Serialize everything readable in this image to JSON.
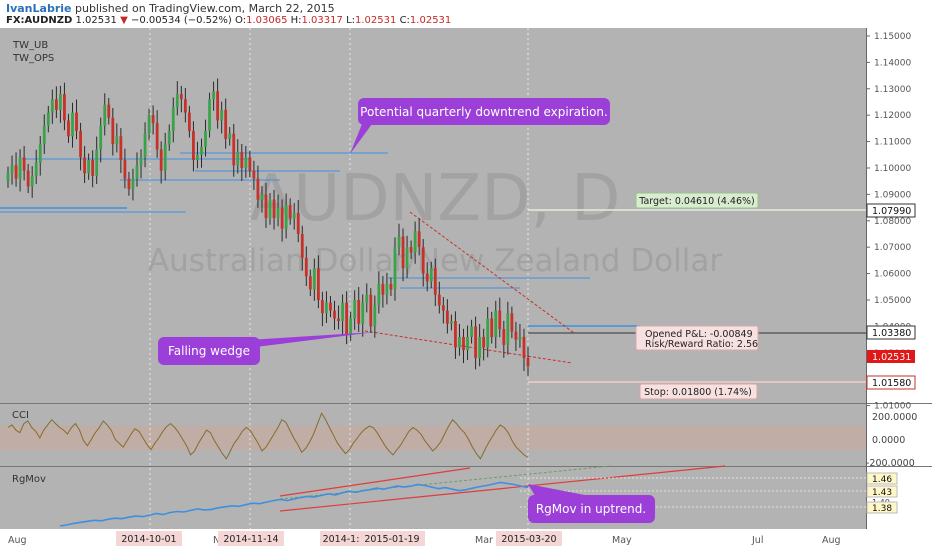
{
  "header": {
    "author": "IvanLabrie",
    "published": "published on TradingView.com, March 22, 2015",
    "symbol": "FX:AUDNZD",
    "last": "1.02531",
    "arrow": "▼",
    "change": "−0.00534 (−0.52%)",
    "o_label": "O:",
    "open": "1.03065",
    "h_label": "H:",
    "high": "1.03317",
    "l_label": "L:",
    "low": "1.02531",
    "c_label": "C:",
    "close": "1.02531"
  },
  "watermark": {
    "title": "AUDNZD, D",
    "subtitle": "Australian Dollar/New Zealand Dollar"
  },
  "studies": {
    "main_1": "TW_UB",
    "main_2": "TW_OPS",
    "cci": "CCI",
    "rgmov": "RgMov"
  },
  "annotations": {
    "callout_quarterly": "Potential quarterly downtrend expiration.",
    "callout_wedge": "Falling wedge",
    "callout_rgmov": "RgMov in uptrend.",
    "target": "Target: 0.04610 (4.46%)",
    "pnl_line1": "Opened P&L: -0.00849",
    "pnl_line2": "Risk/Reward Ratio: 2.56",
    "stop": "Stop: 0.01800 (1.74%)"
  },
  "price_badges": {
    "target": "1.07990",
    "entry": "1.03380",
    "last": "1.02531",
    "stop": "1.01580"
  },
  "date_badges": [
    "2014-10-01",
    "2014-11-14",
    "2014-1:",
    "2015-01-19",
    "2015-03-20"
  ],
  "month_labels": [
    "Aug",
    "No",
    "Mar",
    "May",
    "Jul",
    "Aug"
  ],
  "price_axis_ticks": [
    "1.15000",
    "1.14000",
    "1.13000",
    "1.12000",
    "1.11000",
    "1.10000",
    "1.09000",
    "1.08000",
    "1.07000",
    "1.06000",
    "1.05000",
    "1.04000",
    "1.03000",
    "1.02000",
    "1.01000"
  ],
  "cci_axis_ticks": [
    "200.0000",
    "0.0000",
    "-200.0000"
  ],
  "rgmov_axis_ticks": [
    "1.46",
    "1.43",
    "1.40",
    "1.38"
  ],
  "colors": {
    "background": "#b3b3b3",
    "up": "#3aa34a",
    "down": "#c8302a",
    "blue_line": "#3f8fe0",
    "callout": "#9b3fd8",
    "cci_line": "#8a6a2a",
    "cci_band": "#c9a79a",
    "trend_red": "#e03c3c"
  },
  "chart_data": {
    "type": "candlestick",
    "symbol": "FX:AUDNZD",
    "timeframe": "D",
    "last_close": 1.02531,
    "y_range": [
      1.0125,
      1.1515
    ],
    "closes": [
      1.098,
      1.101,
      1.096,
      1.104,
      1.099,
      1.093,
      1.097,
      1.102,
      1.109,
      1.116,
      1.121,
      1.126,
      1.122,
      1.128,
      1.118,
      1.112,
      1.121,
      1.114,
      1.104,
      1.098,
      1.103,
      1.097,
      1.107,
      1.116,
      1.124,
      1.119,
      1.109,
      1.112,
      1.103,
      1.096,
      1.092,
      1.096,
      1.101,
      1.104,
      1.113,
      1.12,
      1.117,
      1.107,
      1.099,
      1.109,
      1.114,
      1.123,
      1.128,
      1.126,
      1.121,
      1.114,
      1.103,
      1.105,
      1.108,
      1.114,
      1.126,
      1.129,
      1.118,
      1.122,
      1.111,
      1.113,
      1.101,
      1.106,
      1.1,
      1.104,
      1.099,
      1.096,
      1.088,
      1.09,
      1.081,
      1.088,
      1.081,
      1.085,
      1.077,
      1.086,
      1.081,
      1.083,
      1.075,
      1.066,
      1.059,
      1.054,
      1.062,
      1.05,
      1.045,
      1.049,
      1.046,
      1.043,
      1.042,
      1.049,
      1.037,
      1.043,
      1.05,
      1.041,
      1.049,
      1.052,
      1.04,
      1.048,
      1.056,
      1.052,
      1.056,
      1.054,
      1.07,
      1.074,
      1.062,
      1.07,
      1.068,
      1.076,
      1.07,
      1.06,
      1.057,
      1.062,
      1.052,
      1.048,
      1.046,
      1.041,
      1.042,
      1.032,
      1.036,
      1.031,
      1.036,
      1.04,
      1.028,
      1.036,
      1.032,
      1.043,
      1.036,
      1.046,
      1.039,
      1.033,
      1.045,
      1.038,
      1.035,
      1.036,
      1.028,
      1.025
    ],
    "cci_values": [
      60,
      80,
      40,
      20,
      90,
      110,
      60,
      30,
      -20,
      40,
      80,
      120,
      90,
      60,
      40,
      10,
      60,
      90,
      40,
      -40,
      -80,
      -30,
      20,
      60,
      110,
      80,
      40,
      -30,
      -60,
      -90,
      -40,
      10,
      50,
      30,
      -20,
      -70,
      -110,
      -60,
      -20,
      30,
      70,
      90,
      60,
      20,
      -30,
      -80,
      -150,
      -120,
      -60,
      -10,
      40,
      20,
      -40,
      -90,
      -140,
      -180,
      -120,
      -60,
      -20,
      30,
      60,
      40,
      -10,
      -60,
      -120,
      -90,
      -40,
      10,
      60,
      120,
      100,
      40,
      -20,
      -70,
      -130,
      -100,
      -50,
      10,
      90,
      170,
      120,
      60,
      0,
      -60,
      -100,
      -140,
      -110,
      -60,
      -20,
      20,
      50,
      70,
      60,
      20,
      -30,
      -80,
      -120,
      -150,
      -110,
      -70,
      -20,
      30,
      60,
      40,
      10,
      -40,
      -80,
      -120,
      -90,
      -50,
      10,
      70,
      120,
      90,
      50,
      20,
      -30,
      -90,
      -140,
      -180,
      -120,
      -60,
      -10,
      40,
      80,
      60,
      20,
      -40,
      -90,
      -120,
      -150,
      -170
    ],
    "cci_range": [
      -220,
      210
    ],
    "rgmov_values": [
      1.372,
      1.374,
      1.377,
      1.379,
      1.381,
      1.383,
      1.382,
      1.385,
      1.387,
      1.386,
      1.389,
      1.391,
      1.39,
      1.393,
      1.396,
      1.394,
      1.398,
      1.4,
      1.399,
      1.402,
      1.405,
      1.403,
      1.404,
      1.407,
      1.409,
      1.411,
      1.41,
      1.413,
      1.416,
      1.415,
      1.418,
      1.421,
      1.423,
      1.421,
      1.424,
      1.427,
      1.429,
      1.428,
      1.431,
      1.434,
      1.432,
      1.436,
      1.439,
      1.437,
      1.44,
      1.442,
      1.445,
      1.443,
      1.446,
      1.449,
      1.447,
      1.449,
      1.452,
      1.45,
      1.447,
      1.444,
      1.446,
      1.443,
      1.44,
      1.442,
      1.445,
      1.448,
      1.45,
      1.453,
      1.456,
      1.454,
      1.452,
      1.449,
      1.446
    ],
    "rgmov_range": [
      1.37,
      1.48
    ],
    "levels": {
      "target": 1.0799,
      "entry": 1.0338,
      "last": 1.02531,
      "stop": 1.0158
    },
    "target_pct": "4.46%",
    "stop_pct": "1.74%",
    "risk_reward": 2.56,
    "open_pnl": -0.00849
  }
}
